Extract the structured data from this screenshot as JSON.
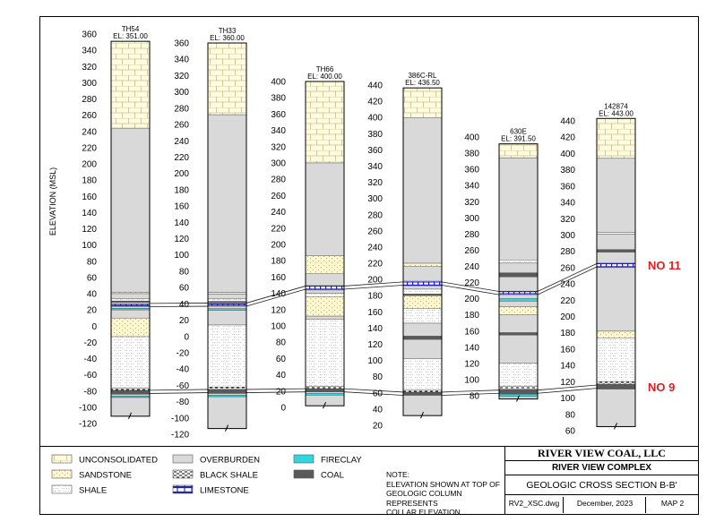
{
  "diagram": {
    "y_axis_label": "ELEVATION (MSL)",
    "columns": [
      {
        "id": "TH54",
        "elevation_label": "EL: 351.00",
        "collar": 351,
        "scale": {
          "top": 360,
          "bottom": -120,
          "step": 20
        },
        "bottom_of_hole": -111,
        "layers": [
          {
            "lithology": "unconsolidated",
            "from": 351,
            "to": 244
          },
          {
            "lithology": "overburden",
            "from": 244,
            "to": 42
          },
          {
            "lithology": "sandstone",
            "from": 42,
            "to": 40
          },
          {
            "lithology": "overburden",
            "from": 40,
            "to": 34
          },
          {
            "lithology": "shale",
            "from": 34,
            "to": 31
          },
          {
            "lithology": "coal",
            "from": 31,
            "to": 29
          },
          {
            "lithology": "limestone",
            "from": 28,
            "to": 24
          },
          {
            "lithology": "overburden",
            "from": 24,
            "to": 22
          },
          {
            "lithology": "fireclay",
            "from": 22,
            "to": 20
          },
          {
            "lithology": "overburden",
            "from": 20,
            "to": 10
          },
          {
            "lithology": "sandstone",
            "from": 10,
            "to": -13
          },
          {
            "lithology": "shale",
            "from": -13,
            "to": -76
          },
          {
            "lithology": "black_shale",
            "from": -76,
            "to": -79
          },
          {
            "lithology": "coal",
            "from": -79,
            "to": -84
          },
          {
            "lithology": "overburden",
            "from": -84,
            "to": -86
          },
          {
            "lithology": "fireclay",
            "from": -86,
            "to": -88
          },
          {
            "lithology": "overburden",
            "from": -88,
            "to": -111
          }
        ]
      },
      {
        "id": "TH33",
        "elevation_label": "EL: 360.00",
        "collar": 360,
        "scale": {
          "top": 360,
          "bottom": -120,
          "step": 20
        },
        "bottom_of_hole": -113,
        "layers": [
          {
            "lithology": "unconsolidated",
            "from": 360,
            "to": 272
          },
          {
            "lithology": "overburden",
            "from": 272,
            "to": 54
          },
          {
            "lithology": "sandstone",
            "from": 54,
            "to": 52
          },
          {
            "lithology": "overburden",
            "from": 52,
            "to": 46
          },
          {
            "lithology": "shale",
            "from": 46,
            "to": 43
          },
          {
            "lithology": "coal",
            "from": 43,
            "to": 41
          },
          {
            "lithology": "limestone",
            "from": 41,
            "to": 37
          },
          {
            "lithology": "overburden",
            "from": 37,
            "to": 34
          },
          {
            "lithology": "fireclay",
            "from": 34,
            "to": 32
          },
          {
            "lithology": "overburden",
            "from": 32,
            "to": 14
          },
          {
            "lithology": "shale",
            "from": 14,
            "to": -62
          },
          {
            "lithology": "black_shale",
            "from": -62,
            "to": -65
          },
          {
            "lithology": "coal",
            "from": -65,
            "to": -70
          },
          {
            "lithology": "overburden",
            "from": -70,
            "to": -72
          },
          {
            "lithology": "fireclay",
            "from": -72,
            "to": -74
          },
          {
            "lithology": "overburden",
            "from": -74,
            "to": -113
          }
        ]
      },
      {
        "id": "TH66",
        "elevation_label": "EL: 400.00",
        "collar": 400,
        "scale": {
          "top": 400,
          "bottom": 0,
          "step": 20
        },
        "bottom_of_hole": 2,
        "layers": [
          {
            "lithology": "unconsolidated",
            "from": 400,
            "to": 300
          },
          {
            "lithology": "overburden",
            "from": 300,
            "to": 186
          },
          {
            "lithology": "sandstone",
            "from": 186,
            "to": 164
          },
          {
            "lithology": "overburden",
            "from": 164,
            "to": 150
          },
          {
            "lithology": "limestone",
            "from": 150,
            "to": 144
          },
          {
            "lithology": "overburden",
            "from": 144,
            "to": 140
          },
          {
            "lithology": "shale",
            "from": 140,
            "to": 136
          },
          {
            "lithology": "sandstone",
            "from": 136,
            "to": 112
          },
          {
            "lithology": "overburden",
            "from": 112,
            "to": 108
          },
          {
            "lithology": "shale",
            "from": 108,
            "to": 26
          },
          {
            "lithology": "black_shale",
            "from": 26,
            "to": 23
          },
          {
            "lithology": "coal",
            "from": 23,
            "to": 19
          },
          {
            "lithology": "overburden",
            "from": 19,
            "to": 17
          },
          {
            "lithology": "fireclay",
            "from": 17,
            "to": 15
          },
          {
            "lithology": "overburden",
            "from": 15,
            "to": 2
          }
        ]
      },
      {
        "id": "386C-RL",
        "elevation_label": "EL: 436.50",
        "collar": 436.5,
        "scale": {
          "top": 440,
          "bottom": 20,
          "step": 20
        },
        "bottom_of_hole": 32,
        "layers": [
          {
            "lithology": "unconsolidated",
            "from": 436.5,
            "to": 400
          },
          {
            "lithology": "overburden",
            "from": 400,
            "to": 220
          },
          {
            "lithology": "sandstone",
            "from": 220,
            "to": 216
          },
          {
            "lithology": "overburden",
            "from": 216,
            "to": 198
          },
          {
            "lithology": "limestone",
            "from": 198,
            "to": 192
          },
          {
            "lithology": "overburden",
            "from": 192,
            "to": 188
          },
          {
            "lithology": "shale",
            "from": 188,
            "to": 182
          },
          {
            "lithology": "coal",
            "from": 182,
            "to": 180
          },
          {
            "lithology": "sandstone",
            "from": 180,
            "to": 164
          },
          {
            "lithology": "shale",
            "from": 164,
            "to": 146
          },
          {
            "lithology": "overburden",
            "from": 146,
            "to": 130
          },
          {
            "lithology": "coal",
            "from": 130,
            "to": 126
          },
          {
            "lithology": "overburden",
            "from": 126,
            "to": 102
          },
          {
            "lithology": "shale",
            "from": 102,
            "to": 64
          },
          {
            "lithology": "black_shale",
            "from": 64,
            "to": 61
          },
          {
            "lithology": "coal",
            "from": 61,
            "to": 57
          },
          {
            "lithology": "overburden",
            "from": 57,
            "to": 32
          }
        ]
      },
      {
        "id": "630E",
        "elevation_label": "EL: 391.50",
        "collar": 391.5,
        "scale": {
          "top": 400,
          "bottom": 80,
          "step": 20
        },
        "bottom_of_hole": 76,
        "layers": [
          {
            "lithology": "unconsolidated",
            "from": 391.5,
            "to": 374
          },
          {
            "lithology": "overburden",
            "from": 374,
            "to": 248
          },
          {
            "lithology": "shale",
            "from": 248,
            "to": 244
          },
          {
            "lithology": "overburden",
            "from": 244,
            "to": 232
          },
          {
            "lithology": "coal",
            "from": 232,
            "to": 227
          },
          {
            "lithology": "overburden",
            "from": 227,
            "to": 210
          },
          {
            "lithology": "limestone",
            "from": 210,
            "to": 205
          },
          {
            "lithology": "overburden",
            "from": 205,
            "to": 200
          },
          {
            "lithology": "fireclay",
            "from": 200,
            "to": 197
          },
          {
            "lithology": "overburden",
            "from": 197,
            "to": 190
          },
          {
            "lithology": "sandstone",
            "from": 190,
            "to": 180
          },
          {
            "lithology": "overburden",
            "from": 180,
            "to": 158
          },
          {
            "lithology": "coal",
            "from": 158,
            "to": 155
          },
          {
            "lithology": "overburden",
            "from": 155,
            "to": 120
          },
          {
            "lithology": "shale",
            "from": 120,
            "to": 92
          },
          {
            "lithology": "black_shale",
            "from": 92,
            "to": 88
          },
          {
            "lithology": "coal",
            "from": 88,
            "to": 82
          },
          {
            "lithology": "fireclay",
            "from": 82,
            "to": 79
          },
          {
            "lithology": "overburden",
            "from": 79,
            "to": 76
          }
        ]
      },
      {
        "id": "142874",
        "elevation_label": "EL: 443.00",
        "collar": 443,
        "scale": {
          "top": 440,
          "bottom": 60,
          "step": 20
        },
        "bottom_of_hole": 65,
        "layers": [
          {
            "lithology": "unconsolidated",
            "from": 443,
            "to": 394
          },
          {
            "lithology": "overburden",
            "from": 394,
            "to": 303
          },
          {
            "lithology": "shale",
            "from": 303,
            "to": 301
          },
          {
            "lithology": "overburden",
            "from": 301,
            "to": 282
          },
          {
            "lithology": "coal",
            "from": 282,
            "to": 279
          },
          {
            "lithology": "overburden",
            "from": 279,
            "to": 266
          },
          {
            "lithology": "limestone",
            "from": 266,
            "to": 260
          },
          {
            "lithology": "overburden",
            "from": 260,
            "to": 182
          },
          {
            "lithology": "sandstone",
            "from": 182,
            "to": 174
          },
          {
            "lithology": "shale",
            "from": 174,
            "to": 120
          },
          {
            "lithology": "black_shale",
            "from": 120,
            "to": 117
          },
          {
            "lithology": "coal",
            "from": 117,
            "to": 111
          },
          {
            "lithology": "overburden",
            "from": 111,
            "to": 65
          }
        ]
      }
    ],
    "seams": [
      {
        "label": "NO 11",
        "color": "#e02020",
        "elevations": [
          26,
          39,
          147,
          195,
          207,
          263
        ]
      },
      {
        "label": "NO 9",
        "color": "#e02020",
        "elevations": [
          -81,
          -67,
          21,
          59,
          85,
          114
        ]
      }
    ]
  },
  "legend": {
    "items": [
      {
        "key": "unconsolidated",
        "label": "UNCONSOLIDATED"
      },
      {
        "key": "sandstone",
        "label": "SANDSTONE"
      },
      {
        "key": "shale",
        "label": "SHALE"
      },
      {
        "key": "overburden",
        "label": "OVERBURDEN"
      },
      {
        "key": "black_shale",
        "label": "BLACK SHALE"
      },
      {
        "key": "limestone",
        "label": "LIMESTONE"
      },
      {
        "key": "fireclay",
        "label": "FIRECLAY"
      },
      {
        "key": "coal",
        "label": "COAL"
      }
    ]
  },
  "note": {
    "heading": "NOTE:",
    "lines": [
      "ELEVATION SHOWN AT TOP OF",
      "GEOLOGIC COLUMN REPRESENTS",
      "COLLAR ELEVATION"
    ]
  },
  "title_block": {
    "company": "RIVER VIEW COAL, LLC",
    "project": "RIVER VIEW COMPLEX",
    "title": "GEOLOGIC CROSS SECTION B-B'",
    "file": "RV2_XSC.dwg",
    "date": "December, 2023",
    "map": "MAP 2"
  },
  "colors": {
    "overburden": "#d9d9d9",
    "coal": "#5a5a5a",
    "fireclay": "#33d6e0",
    "limestone_band": "#1f1fb8",
    "unconsolidated": "#fffbe0",
    "sandstone": "#fff7cf",
    "seam_label": "#e02020",
    "border": "#000000"
  }
}
